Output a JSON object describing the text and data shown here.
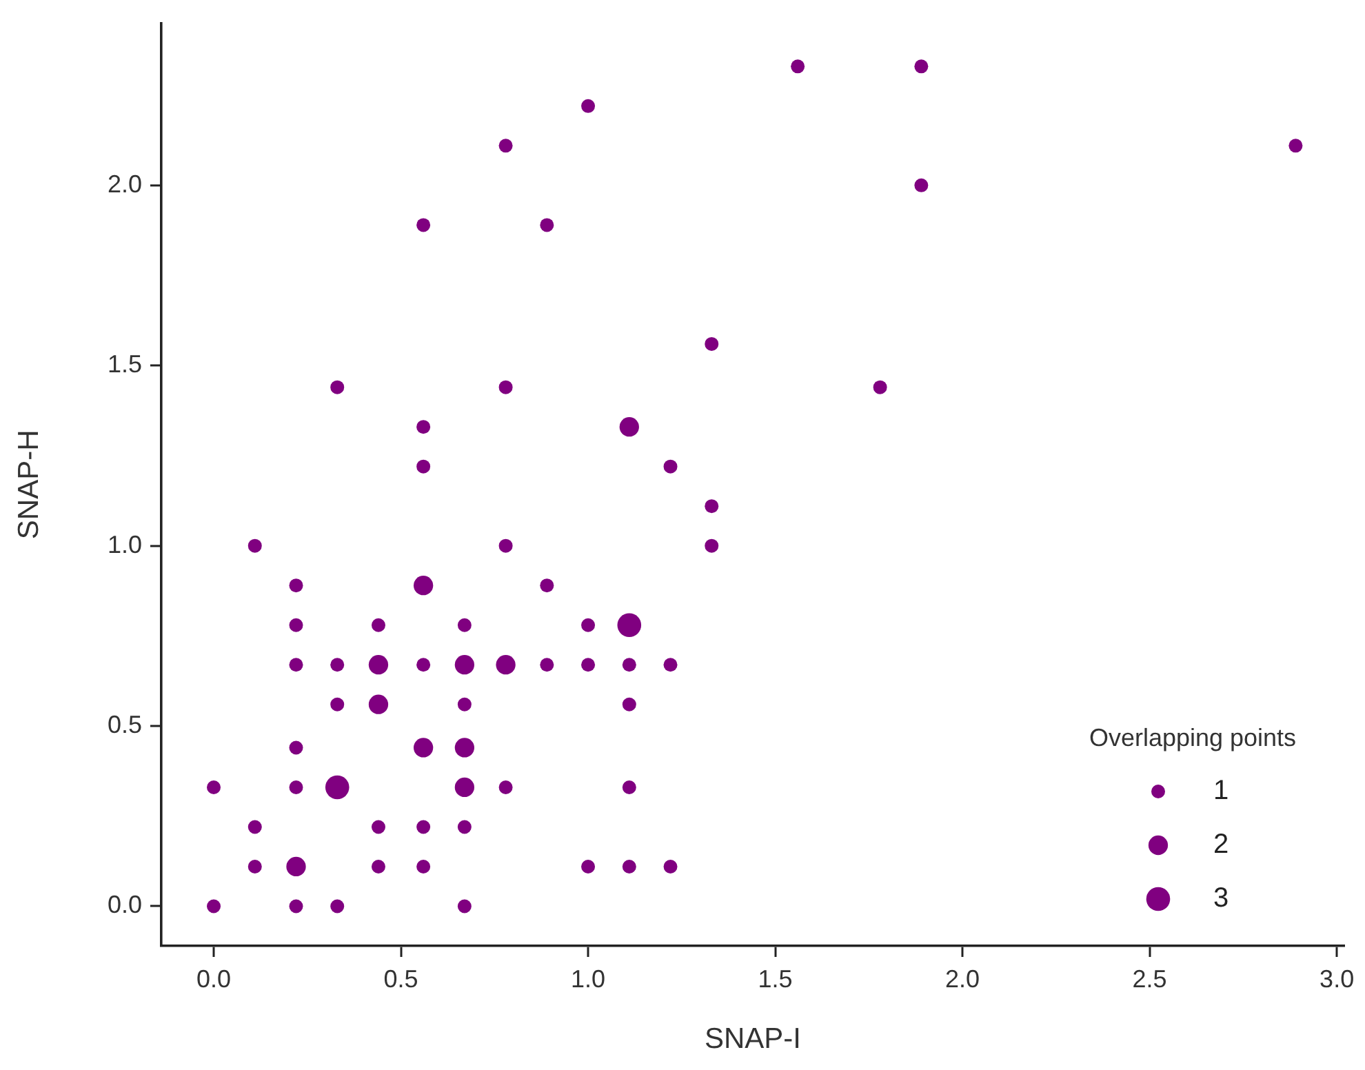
{
  "chart_data": {
    "type": "bubble",
    "xlabel": "SNAP-I",
    "ylabel": "SNAP-H",
    "legend_title": "Overlapping points",
    "grid": false,
    "xlim": [
      -0.14,
      3.02
    ],
    "xticks": [
      {
        "value": 0,
        "label": "0.0"
      },
      {
        "value": 0.5,
        "label": "0.5"
      },
      {
        "value": 1,
        "label": "1.0"
      },
      {
        "value": 1.5,
        "label": "1.5"
      },
      {
        "value": 2,
        "label": "2.0"
      },
      {
        "value": 2.5,
        "label": "2.5"
      },
      {
        "value": 3,
        "label": "3.0"
      }
    ],
    "ylim": [
      -0.11,
      2.45
    ],
    "yticks": [
      {
        "value": 0,
        "label": "0.0"
      },
      {
        "value": 0.5,
        "label": "0.5"
      },
      {
        "value": 1,
        "label": "1.0"
      },
      {
        "value": 1.5,
        "label": "1.5"
      },
      {
        "value": 2,
        "label": "2.0"
      }
    ],
    "size_legend": [
      1,
      2,
      3
    ],
    "series": [
      {
        "color": "#800080",
        "x": [
          0.11,
          0.78,
          1.33,
          0.22,
          0.56,
          0.89,
          0.22,
          0.44,
          0.67,
          1.0,
          1.11,
          0.22,
          0.33,
          0.44,
          0.56,
          0.67,
          0.78,
          0.89,
          1.0,
          1.11,
          1.22,
          0.33,
          0.44,
          0.67,
          1.11,
          0.22,
          0.56,
          0.67,
          0,
          0.22,
          0.33,
          0.67,
          0.78,
          1.11,
          0.11,
          0.44,
          0.56,
          0.67,
          0.11,
          0.22,
          0.44,
          0.56,
          1.0,
          1.11,
          1.22,
          0,
          0.22,
          0.33,
          0.67,
          0.56,
          0.56,
          1.22,
          1.33,
          1.11,
          0.33,
          0.78,
          1.78,
          1.33,
          0.56,
          0.89,
          1.89,
          0.78,
          2.89,
          1.0,
          1.56,
          1.89
        ],
        "values": [
          1.0,
          1.0,
          1.0,
          0.89,
          0.89,
          0.89,
          0.78,
          0.78,
          0.78,
          0.78,
          0.78,
          0.67,
          0.67,
          0.67,
          0.67,
          0.67,
          0.67,
          0.67,
          0.67,
          0.67,
          0.67,
          0.56,
          0.56,
          0.56,
          0.56,
          0.44,
          0.44,
          0.44,
          0.33,
          0.33,
          0.33,
          0.33,
          0.33,
          0.33,
          0.22,
          0.22,
          0.22,
          0.22,
          0.11,
          0.11,
          0.11,
          0.11,
          0.11,
          0.11,
          0.11,
          0,
          0,
          0,
          0,
          1.22,
          1.33,
          1.22,
          1.11,
          1.33,
          1.44,
          1.44,
          1.44,
          1.56,
          1.89,
          1.89,
          2.0,
          2.11,
          2.11,
          2.22,
          2.33,
          2.33
        ],
        "sizes": [
          1,
          1,
          1,
          1,
          2,
          1,
          1,
          1,
          1,
          1,
          3,
          1,
          1,
          2,
          1,
          2,
          2,
          1,
          1,
          1,
          1,
          1,
          2,
          1,
          1,
          1,
          2,
          2,
          1,
          1,
          3,
          2,
          1,
          1,
          1,
          1,
          1,
          1,
          1,
          2,
          1,
          1,
          1,
          1,
          1,
          1,
          1,
          1,
          1,
          1,
          1,
          1,
          1,
          2,
          1,
          1,
          1,
          1,
          1,
          1,
          1,
          1,
          1,
          1,
          1,
          1
        ]
      }
    ]
  }
}
